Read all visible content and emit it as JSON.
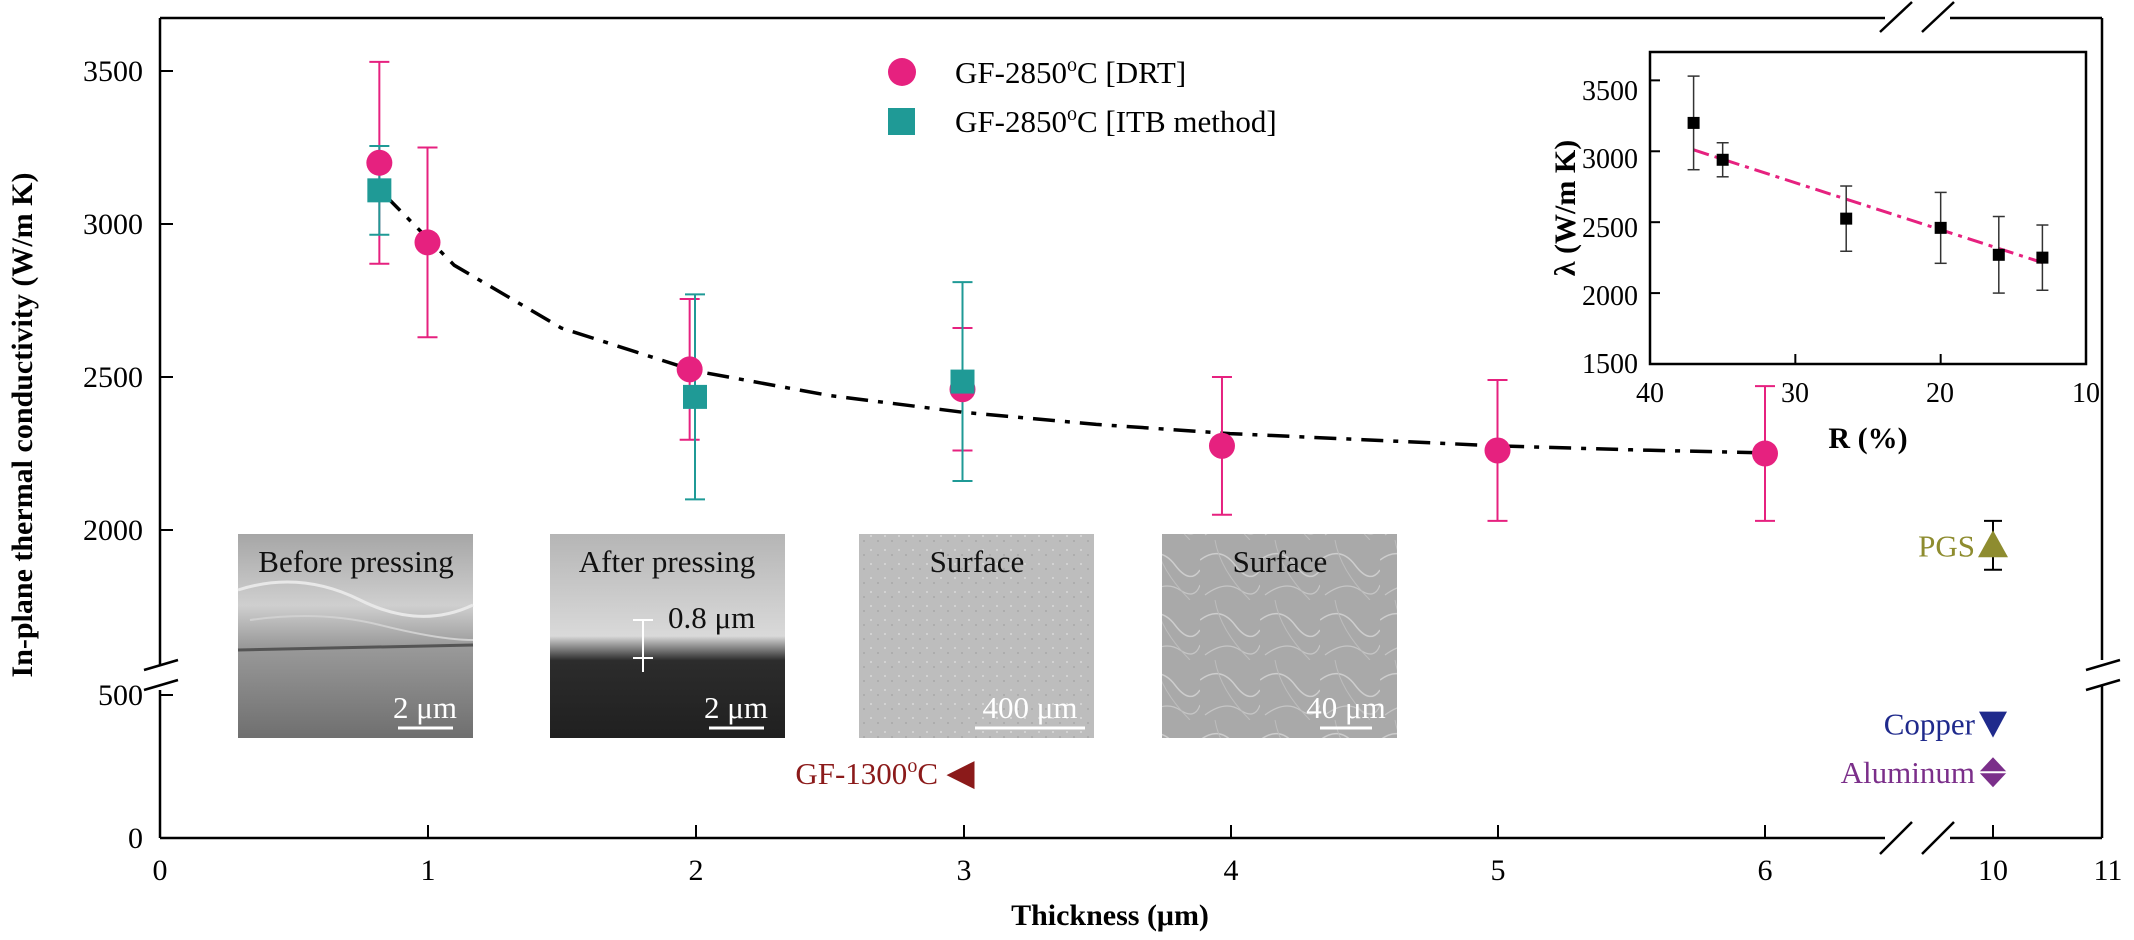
{
  "chart_data": [
    {
      "type": "scatter",
      "xlabel": "Thickness (μm)",
      "ylabel": "In-plane thermal conductivity (W/m K)",
      "xlim": [
        0,
        11
      ],
      "x_ticks": [
        "0",
        "1",
        "2",
        "3",
        "4",
        "5",
        "6",
        "10",
        "11"
      ],
      "y_ticks": [
        "0",
        "500",
        "2000",
        "2500",
        "3000",
        "3500"
      ],
      "axis_breaks": [
        "x between 6 and 10",
        "y between 500 and 1700"
      ],
      "legend_position": "top-center",
      "series": [
        {
          "name": "GF-2850oC [DRT]",
          "legend_main": "GF-2850",
          "legend_sup": "o",
          "legend_tail": "C [DRT]",
          "marker": "circle",
          "color": "#e6217f",
          "points": [
            {
              "x": 0.82,
              "y": 3200,
              "err_low": 330,
              "err_high": 330
            },
            {
              "x": 1.0,
              "y": 2940,
              "err_low": 310,
              "err_high": 310
            },
            {
              "x": 1.98,
              "y": 2525,
              "err_low": 230,
              "err_high": 230
            },
            {
              "x": 3.0,
              "y": 2460,
              "err_low": 200,
              "err_high": 200
            },
            {
              "x": 3.97,
              "y": 2275,
              "err_low": 225,
              "err_high": 225
            },
            {
              "x": 5.0,
              "y": 2260,
              "err_low": 230,
              "err_high": 230
            },
            {
              "x": 6.0,
              "y": 2250,
              "err_low": 220,
              "err_high": 220
            }
          ]
        },
        {
          "name": "GF-2850oC [ITB method]",
          "legend_main": "GF-2850",
          "legend_sup": "o",
          "legend_tail": "C [ITB method]",
          "marker": "square",
          "color": "#1f9a96",
          "points": [
            {
              "x": 0.82,
              "y": 3110,
              "err_low": 145,
              "err_high": 145
            },
            {
              "x": 2.0,
              "y": 2435,
              "err_low": 335,
              "err_high": 335
            },
            {
              "x": 3.0,
              "y": 2485,
              "err_low": 325,
              "err_high": 325
            }
          ]
        }
      ],
      "fit_curve": {
        "style": "dash-dot / dashed",
        "points": [
          [
            0.84,
            3095
          ],
          [
            1.1,
            2865
          ],
          [
            1.5,
            2660
          ],
          [
            2.0,
            2520
          ],
          [
            2.5,
            2440
          ],
          [
            3.0,
            2385
          ],
          [
            3.5,
            2345
          ],
          [
            4.0,
            2315
          ],
          [
            4.5,
            2295
          ],
          [
            5.0,
            2275
          ],
          [
            5.5,
            2262
          ],
          [
            6.0,
            2252
          ]
        ]
      },
      "references": [
        {
          "label": "PGS",
          "x": 10,
          "y": 1950,
          "err": 80,
          "marker": "triangle-up",
          "color": "#8e8c2f"
        },
        {
          "label": "Copper",
          "x": 10,
          "y": 400,
          "marker": "triangle-down",
          "color": "#1f2a8c"
        },
        {
          "label": "Aluminum",
          "x": 10,
          "y": 230,
          "marker": "diamond",
          "color": "#7b2f8a"
        }
      ],
      "gf1300": {
        "main": "GF-1300",
        "sup": "o",
        "tail": "C",
        "x": 3.0,
        "y": 220,
        "marker": "triangle-left",
        "color": "#8b1a1a"
      }
    },
    {
      "type": "scatter",
      "xlabel": "R (%)",
      "ylabel": "λ (W/m K)",
      "xlim": [
        40,
        10
      ],
      "ylim": [
        1500,
        3700
      ],
      "x_ticks": [
        "40",
        "30",
        "20",
        "10"
      ],
      "y_ticks": [
        "1500",
        "2000",
        "2500",
        "3000",
        "3500"
      ],
      "points": [
        {
          "x": 37.0,
          "y": 3200,
          "err": 330
        },
        {
          "x": 35.0,
          "y": 2940,
          "err": 120
        },
        {
          "x": 26.5,
          "y": 2525,
          "err": 230
        },
        {
          "x": 20.0,
          "y": 2460,
          "err": 250
        },
        {
          "x": 16.0,
          "y": 2270,
          "err": 270
        },
        {
          "x": 13.0,
          "y": 2250,
          "err": 230
        }
      ],
      "fit_line": {
        "x1": 37,
        "y1": 3010,
        "x2": 13,
        "y2": 2215,
        "color": "#e6217f"
      }
    }
  ],
  "sem_images": [
    {
      "title": "Before pressing",
      "scale_bar": "2 μm"
    },
    {
      "title": "After pressing",
      "scale_bar": "2 μm",
      "thickness_label": "0.8 μm"
    },
    {
      "title": "Surface",
      "scale_bar": "400 μm"
    },
    {
      "title": "Surface",
      "scale_bar": "40 μm"
    }
  ]
}
